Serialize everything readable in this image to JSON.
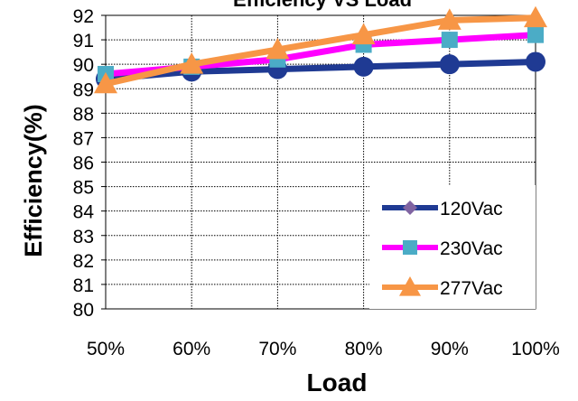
{
  "chart_data": {
    "type": "line",
    "title": "Efficiency VS Load",
    "xlabel": "Load",
    "ylabel": "Efficiency(%)",
    "categories": [
      "50%",
      "60%",
      "70%",
      "80%",
      "90%",
      "100%"
    ],
    "ylim": [
      80,
      92
    ],
    "yticks": [
      "80",
      "81",
      "82",
      "83",
      "84",
      "85",
      "86",
      "87",
      "88",
      "89",
      "90",
      "91",
      "92"
    ],
    "grid": true,
    "legend_position": "bottom-right",
    "series": [
      {
        "name": "120Vac",
        "color": "#1f3a93",
        "marker": "diamond",
        "marker_color": "#8064a2",
        "values": [
          89.4,
          89.7,
          89.8,
          89.9,
          90.0,
          90.1
        ]
      },
      {
        "name": "230Vac",
        "color": "#ff00ff",
        "marker": "square",
        "marker_color": "#4bacc6",
        "values": [
          89.6,
          89.9,
          90.2,
          90.8,
          91.0,
          91.2
        ]
      },
      {
        "name": "277Vac",
        "color": "#f79646",
        "marker": "triangle",
        "marker_color": "#f79646",
        "values": [
          89.2,
          90.0,
          90.6,
          91.2,
          91.8,
          91.9
        ]
      }
    ]
  }
}
